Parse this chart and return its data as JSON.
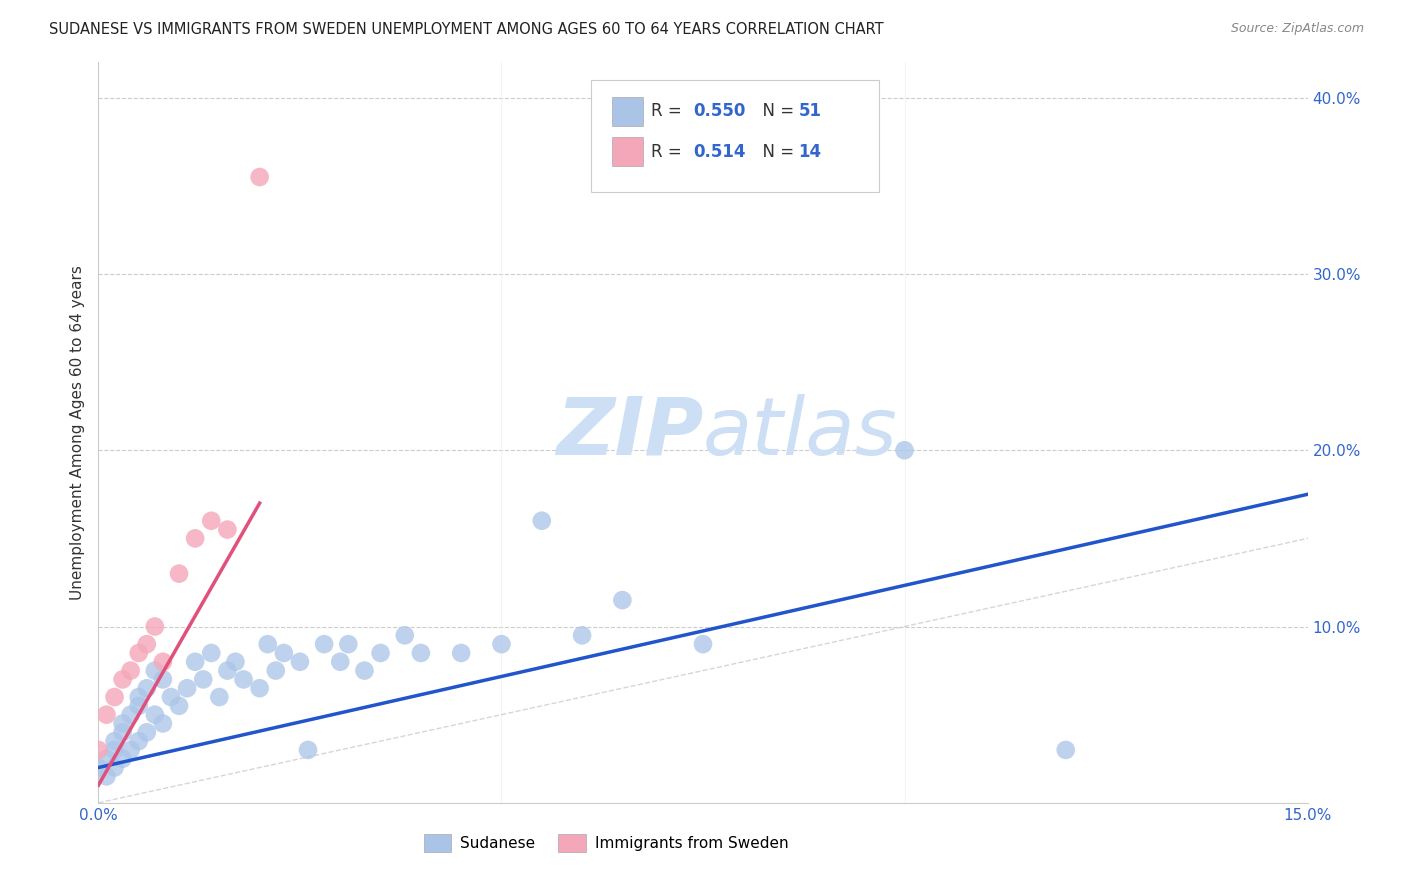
{
  "title": "SUDANESE VS IMMIGRANTS FROM SWEDEN UNEMPLOYMENT AMONG AGES 60 TO 64 YEARS CORRELATION CHART",
  "source": "Source: ZipAtlas.com",
  "ylabel": "Unemployment Among Ages 60 to 64 years",
  "xlim": [
    0.0,
    0.15
  ],
  "ylim": [
    0.0,
    0.42
  ],
  "r_sudanese": 0.55,
  "n_sudanese": 51,
  "r_sweden": 0.514,
  "n_sweden": 14,
  "blue_color": "#aac4e8",
  "pink_color": "#f4a7b9",
  "trendline_blue": "#2255cc",
  "trendline_pink": "#e0507a",
  "diagonal_color": "#cccccc",
  "legend_r_color": "#3366cc",
  "watermark_color": "#cddff5",
  "sudanese_x": [
    0.0,
    0.001,
    0.001,
    0.002,
    0.002,
    0.002,
    0.003,
    0.003,
    0.003,
    0.004,
    0.004,
    0.005,
    0.005,
    0.005,
    0.006,
    0.006,
    0.007,
    0.007,
    0.008,
    0.008,
    0.009,
    0.01,
    0.011,
    0.012,
    0.013,
    0.014,
    0.015,
    0.016,
    0.017,
    0.018,
    0.02,
    0.021,
    0.022,
    0.023,
    0.025,
    0.026,
    0.028,
    0.03,
    0.031,
    0.033,
    0.035,
    0.038,
    0.04,
    0.045,
    0.05,
    0.055,
    0.06,
    0.065,
    0.075,
    0.1,
    0.12
  ],
  "sudanese_y": [
    0.02,
    0.015,
    0.025,
    0.02,
    0.03,
    0.035,
    0.025,
    0.04,
    0.045,
    0.03,
    0.05,
    0.035,
    0.055,
    0.06,
    0.04,
    0.065,
    0.05,
    0.075,
    0.045,
    0.07,
    0.06,
    0.055,
    0.065,
    0.08,
    0.07,
    0.085,
    0.06,
    0.075,
    0.08,
    0.07,
    0.065,
    0.09,
    0.075,
    0.085,
    0.08,
    0.03,
    0.09,
    0.08,
    0.09,
    0.075,
    0.085,
    0.095,
    0.085,
    0.085,
    0.09,
    0.16,
    0.095,
    0.115,
    0.09,
    0.2,
    0.03
  ],
  "sweden_x": [
    0.0,
    0.001,
    0.002,
    0.003,
    0.004,
    0.005,
    0.006,
    0.007,
    0.008,
    0.01,
    0.012,
    0.014,
    0.016,
    0.02
  ],
  "sweden_y": [
    0.03,
    0.05,
    0.06,
    0.07,
    0.075,
    0.085,
    0.09,
    0.1,
    0.08,
    0.13,
    0.15,
    0.16,
    0.155,
    0.355
  ],
  "blue_trendline_x": [
    0.0,
    0.15
  ],
  "blue_trendline_y": [
    0.02,
    0.175
  ],
  "pink_trendline_x": [
    0.0,
    0.02
  ],
  "pink_trendline_y": [
    0.01,
    0.17
  ]
}
